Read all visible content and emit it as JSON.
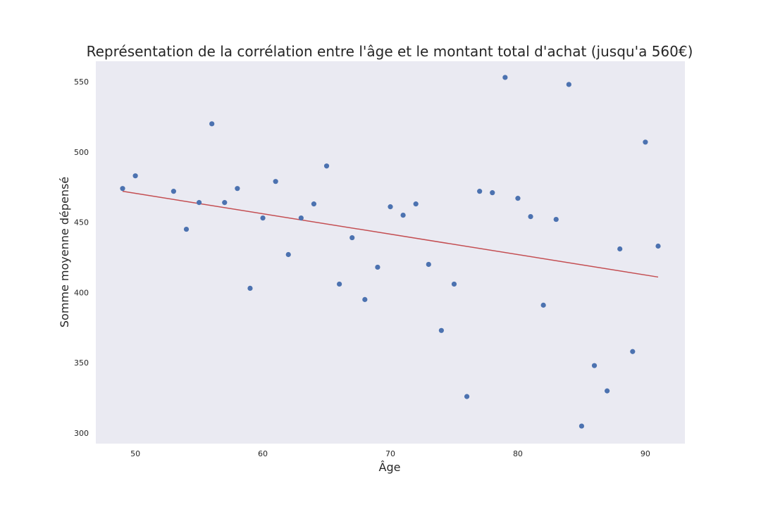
{
  "chart_data": {
    "type": "scatter",
    "title": "Représentation de la corrélation entre l'âge et le montant total d'achat (jusqu'a 560€)",
    "xlabel": "Âge",
    "ylabel": "Somme moyenne dépensé",
    "xlim": [
      46.9,
      93.1
    ],
    "ylim": [
      292.5,
      564.5
    ],
    "xticks": [
      50,
      60,
      70,
      80,
      90
    ],
    "yticks": [
      300,
      350,
      400,
      450,
      500,
      550
    ],
    "grid": false,
    "colors": {
      "points": "#4c72b0",
      "regression": "#c44e52",
      "background": "#eaeaf2"
    },
    "series": [
      {
        "kind": "points",
        "x": [
          49,
          50,
          53,
          54,
          55,
          56,
          57,
          58,
          59,
          60,
          61,
          62,
          63,
          64,
          65,
          66,
          67,
          68,
          69,
          70,
          71,
          72,
          73,
          74,
          75,
          76,
          77,
          78,
          79,
          80,
          81,
          82,
          83,
          84,
          85,
          86,
          87,
          88,
          89,
          90,
          91
        ],
        "y": [
          474,
          483,
          472,
          445,
          464,
          520,
          464,
          474,
          403,
          453,
          479,
          427,
          453,
          463,
          490,
          406,
          439,
          395,
          418,
          461,
          455,
          463,
          420,
          373,
          406,
          326,
          472,
          471,
          553,
          467,
          454,
          391,
          452,
          548,
          305,
          348,
          330,
          431,
          358,
          507,
          433
        ]
      },
      {
        "kind": "regression",
        "x": [
          49,
          91
        ],
        "y": [
          472,
          411
        ]
      }
    ]
  }
}
